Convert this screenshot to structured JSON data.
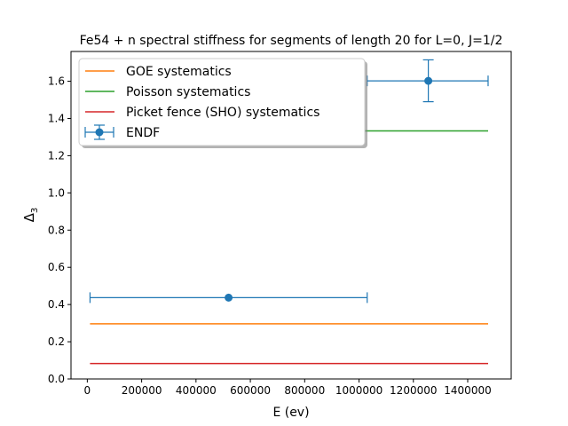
{
  "chart_data": {
    "type": "line",
    "title": "Fe54 + n  spectral stiffness for segments of length 20 for L=0, J=1/2",
    "xlabel": "E (ev)",
    "ylabel_main": "Δ",
    "ylabel_sub": "3",
    "xlim": [
      -60000,
      1560000
    ],
    "ylim": [
      0.0,
      1.76
    ],
    "xticks": [
      0,
      200000,
      400000,
      600000,
      800000,
      1000000,
      1200000,
      1400000
    ],
    "xtick_labels": [
      "0",
      "200000",
      "400000",
      "600000",
      "800000",
      "1000000",
      "1200000",
      "1400000"
    ],
    "yticks": [
      0.0,
      0.2,
      0.4,
      0.6,
      0.8,
      1.0,
      1.2,
      1.4,
      1.6
    ],
    "ytick_labels": [
      "0.0",
      "0.2",
      "0.4",
      "0.6",
      "0.8",
      "1.0",
      "1.2",
      "1.4",
      "1.6"
    ],
    "grid": false,
    "legend_position": "top-left",
    "series": [
      {
        "name": "GOE systematics",
        "kind": "line",
        "color": "#ff7f0e",
        "x": [
          10000,
          1475000
        ],
        "y": [
          0.296,
          0.296
        ]
      },
      {
        "name": "Poisson systematics",
        "kind": "line",
        "color": "#2ca02c",
        "x": [
          10000,
          1475000
        ],
        "y": [
          1.333,
          1.333
        ]
      },
      {
        "name": "Picket fence (SHO) systematics",
        "kind": "line",
        "color": "#d62728",
        "x": [
          10000,
          1475000
        ],
        "y": [
          0.083,
          0.083
        ]
      },
      {
        "name": "ENDF",
        "kind": "errorbar",
        "color": "#1f77b4",
        "points": [
          {
            "x": 520000,
            "y": 0.437,
            "xerr": [
              10000,
              1030000
            ],
            "yerr": [
              0.437,
              0.437
            ]
          },
          {
            "x": 1255000,
            "y": 1.602,
            "xerr": [
              1030000,
              1475000
            ],
            "yerr": [
              1.49,
              1.715
            ]
          }
        ]
      }
    ]
  }
}
